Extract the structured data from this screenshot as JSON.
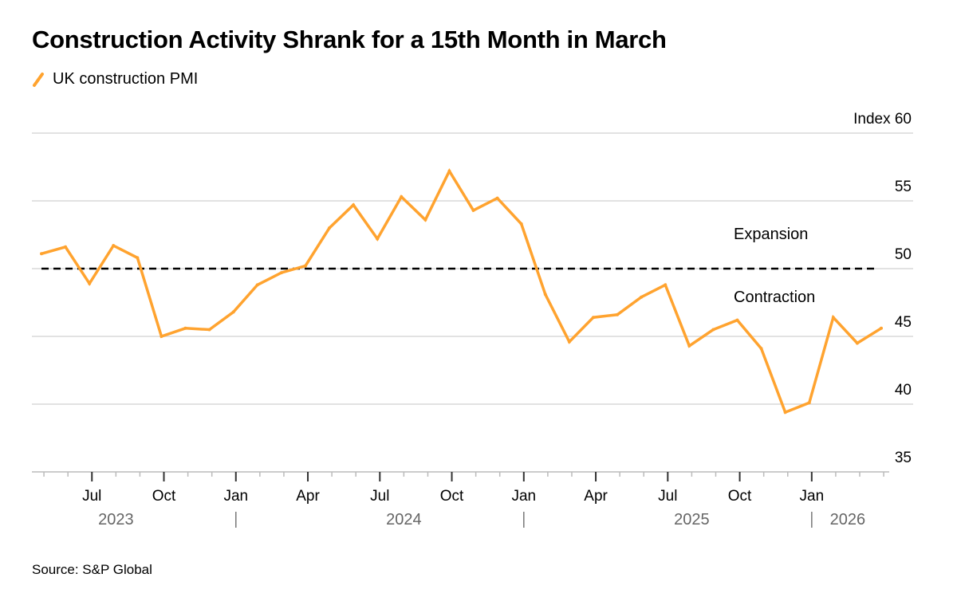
{
  "title": "Construction Activity Shrank for a 15th Month in March",
  "source": "Source: S&P Global",
  "colors": {
    "series": "#FFA32F",
    "grid": "#d9d9d9",
    "reference": "#000000"
  },
  "chart_data": {
    "type": "line",
    "title": "Construction Activity Shrank for a 15th Month in March",
    "legend": {
      "entries": [
        "UK construction PMI"
      ],
      "placement": "top-left"
    },
    "x": [
      "2023-04",
      "2023-05",
      "2023-06",
      "2023-07",
      "2023-08",
      "2023-09",
      "2023-10",
      "2023-11",
      "2023-12",
      "2024-01",
      "2024-02",
      "2024-03",
      "2024-04",
      "2024-05",
      "2024-06",
      "2024-07",
      "2024-08",
      "2024-09",
      "2024-10",
      "2024-11",
      "2024-12",
      "2025-01",
      "2025-02",
      "2025-03",
      "2025-04",
      "2025-05",
      "2025-06",
      "2025-07",
      "2025-08",
      "2025-09",
      "2025-10",
      "2025-11",
      "2025-12",
      "2026-01",
      "2026-02",
      "2026-03"
    ],
    "series": [
      {
        "name": "UK construction PMI",
        "values": [
          51.1,
          51.6,
          48.9,
          51.7,
          50.8,
          45.0,
          45.6,
          45.5,
          46.8,
          48.8,
          49.7,
          50.2,
          53.0,
          54.7,
          52.2,
          55.3,
          53.6,
          57.2,
          54.3,
          55.2,
          53.3,
          48.1,
          44.6,
          46.4,
          46.6,
          47.9,
          48.8,
          44.3,
          45.5,
          46.2,
          44.1,
          39.4,
          40.1,
          46.4,
          44.5,
          45.6
        ]
      }
    ],
    "ylim": [
      35,
      60
    ],
    "yticks": [
      35,
      40,
      45,
      50,
      55,
      60
    ],
    "ylabel": "Index",
    "xticks": [
      {
        "month": "2023-07",
        "label": "Jul"
      },
      {
        "month": "2023-10",
        "label": "Oct"
      },
      {
        "month": "2024-01",
        "label": "Jan"
      },
      {
        "month": "2024-04",
        "label": "Apr"
      },
      {
        "month": "2024-07",
        "label": "Jul"
      },
      {
        "month": "2024-10",
        "label": "Oct"
      },
      {
        "month": "2025-01",
        "label": "Jan"
      },
      {
        "month": "2025-04",
        "label": "Apr"
      },
      {
        "month": "2025-07",
        "label": "Jul"
      },
      {
        "month": "2025-10",
        "label": "Oct"
      },
      {
        "month": "2026-01",
        "label": "Jan"
      }
    ],
    "years": [
      {
        "label": "2023",
        "month": "2023-08"
      },
      {
        "label": "2024",
        "month": "2024-08"
      },
      {
        "label": "2025",
        "month": "2025-08"
      },
      {
        "label": "2026",
        "month": "2026-02"
      }
    ],
    "reference_line": {
      "value": 50,
      "style": "dashed"
    },
    "annotations": [
      "Expansion",
      "Contraction"
    ],
    "grid": true
  }
}
